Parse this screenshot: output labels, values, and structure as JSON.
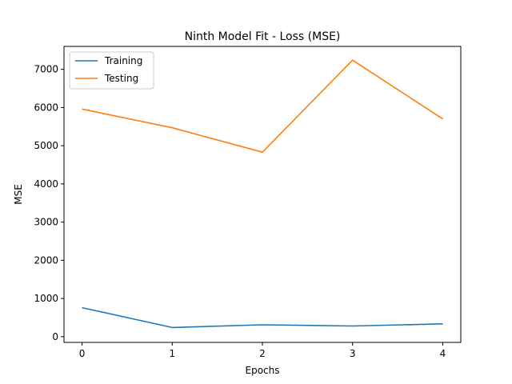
{
  "chart_data": {
    "type": "line",
    "title": "Ninth Model Fit - Loss (MSE)",
    "xlabel": "Epochs",
    "ylabel": "MSE",
    "x": [
      0,
      1,
      2,
      3,
      4
    ],
    "xticks": [
      0,
      1,
      2,
      3,
      4
    ],
    "yticks": [
      0,
      1000,
      2000,
      3000,
      4000,
      5000,
      6000,
      7000
    ],
    "xlim": [
      -0.2,
      4.2
    ],
    "ylim": [
      -150,
      7600
    ],
    "grid": false,
    "legend_position": "top-left",
    "series": [
      {
        "name": "Training",
        "color": "#1f77b4",
        "values": [
          760,
          240,
          310,
          280,
          335
        ]
      },
      {
        "name": "Testing",
        "color": "#ff7f0e",
        "values": [
          5960,
          5470,
          4830,
          7240,
          5700
        ]
      }
    ]
  }
}
